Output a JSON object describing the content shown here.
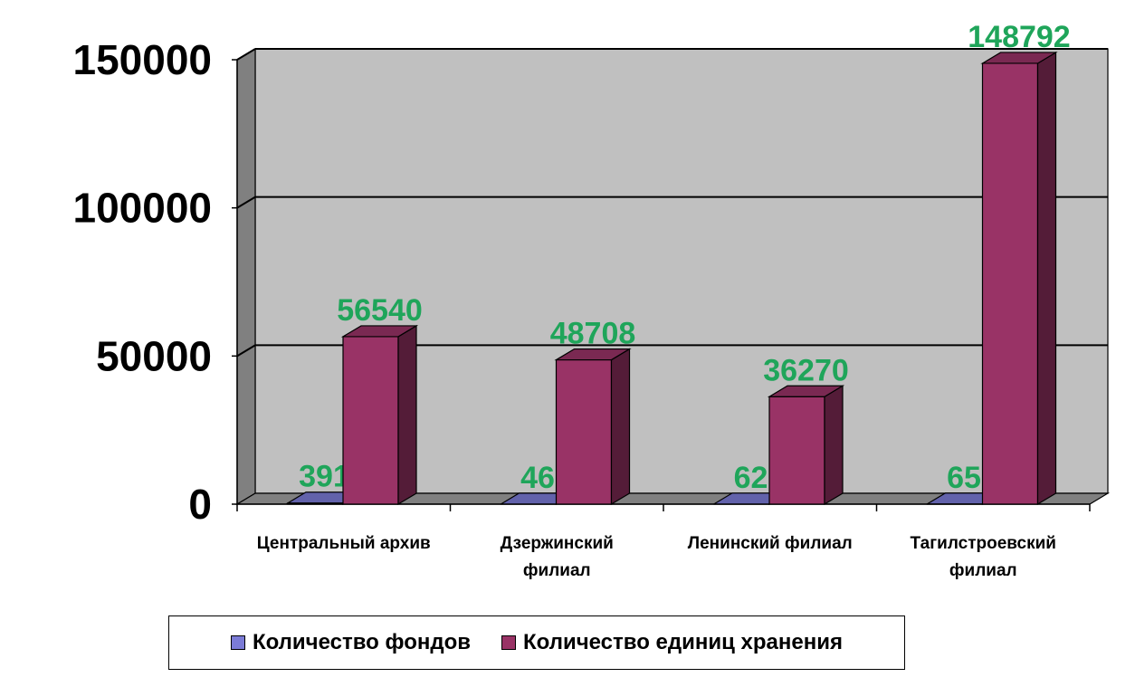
{
  "chart_data": {
    "type": "bar",
    "title": "",
    "xlabel": "",
    "ylabel": "",
    "categories": [
      "Центральный архив",
      "Дзержинский филиал",
      "Ленинский филиал",
      "Тагилстроевский филиал"
    ],
    "category_lines": [
      [
        "Центральный архив"
      ],
      [
        "Дзержинский",
        "филиал"
      ],
      [
        "Ленинский филиал"
      ],
      [
        "Тагилстроевский",
        "филиал"
      ]
    ],
    "series": [
      {
        "name": "Количество фондов",
        "values": [
          391,
          46,
          62,
          65
        ],
        "color": "#7b7bd6"
      },
      {
        "name": "Количество единиц хранения",
        "values": [
          56540,
          48708,
          36270,
          148792
        ],
        "color": "#993366"
      }
    ],
    "data_labels": [
      [
        "391",
        "46",
        "62",
        "65"
      ],
      [
        "56540",
        "48708",
        "36270",
        "148792"
      ]
    ],
    "ylim": [
      0,
      150000
    ],
    "yticks": [
      0,
      50000,
      100000,
      150000
    ],
    "ytick_labels": [
      "0",
      "50000",
      "100000",
      "150000"
    ],
    "grid": true,
    "legend": "bottom",
    "data_label_color": "#1fa55a",
    "wall_color": "#c0c0c0"
  }
}
